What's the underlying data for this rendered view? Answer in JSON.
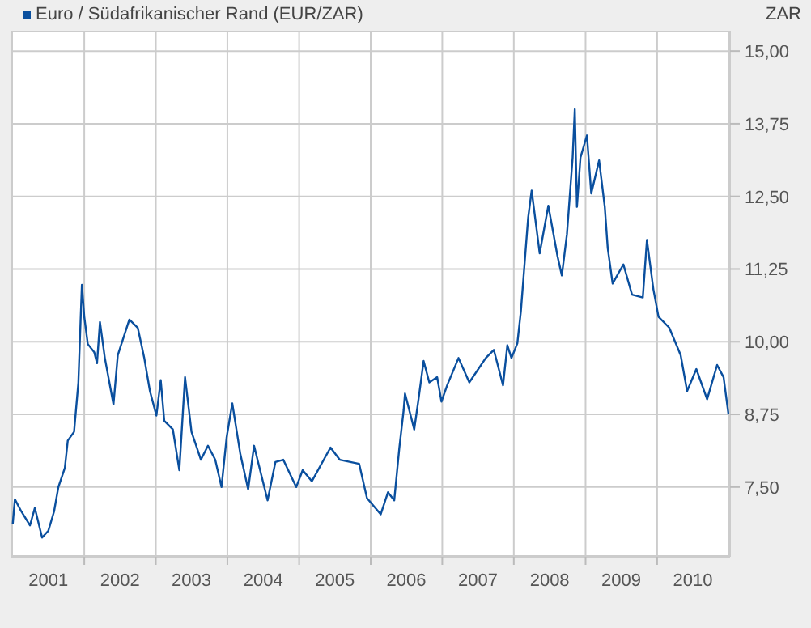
{
  "chart_data": {
    "type": "line",
    "ylabel": "ZAR",
    "legend": "top left",
    "grid": true,
    "line_style": "solid",
    "marker": "none",
    "xlim": [
      "2000-12-25",
      "2011-01-08"
    ],
    "xticks": [
      {
        "value": "2001-07-02",
        "label": "2001"
      },
      {
        "value": "2002-01-01",
        "label": null
      },
      {
        "value": "2002-07-02",
        "label": "2002"
      },
      {
        "value": "2003-01-01",
        "label": null
      },
      {
        "value": "2003-07-02",
        "label": "2003"
      },
      {
        "value": "2004-01-01",
        "label": null
      },
      {
        "value": "2004-07-02",
        "label": "2004"
      },
      {
        "value": "2005-01-01",
        "label": null
      },
      {
        "value": "2005-07-02",
        "label": "2005"
      },
      {
        "value": "2006-01-01",
        "label": null
      },
      {
        "value": "2006-07-02",
        "label": "2006"
      },
      {
        "value": "2007-01-01",
        "label": null
      },
      {
        "value": "2007-07-02",
        "label": "2007"
      },
      {
        "value": "2008-01-01",
        "label": null
      },
      {
        "value": "2008-07-02",
        "label": "2008"
      },
      {
        "value": "2009-01-01",
        "label": null
      },
      {
        "value": "2009-07-02",
        "label": "2009"
      },
      {
        "value": "2010-01-01",
        "label": null
      },
      {
        "value": "2010-07-02",
        "label": "2010"
      }
    ],
    "ylim": [
      6.3,
      15.35
    ],
    "yticks": [
      {
        "value": 7.5,
        "label": "7,50"
      },
      {
        "value": 8.75,
        "label": "8,75"
      },
      {
        "value": 10,
        "label": "10,00"
      },
      {
        "value": 11.25,
        "label": "11,25"
      },
      {
        "value": 12.5,
        "label": "12,50"
      },
      {
        "value": 13.75,
        "label": "13,75"
      },
      {
        "value": 15,
        "label": "15,00"
      }
    ],
    "x": [
      "2001-01-01",
      "2001-01-12",
      "2001-02-14",
      "2001-03-30",
      "2001-04-24",
      "2001-05-31",
      "2001-07-02",
      "2001-07-31",
      "2001-08-22",
      "2001-09-24",
      "2001-10-09",
      "2001-11-10",
      "2001-12-02",
      "2001-12-13",
      "2001-12-20",
      "2002-01-01",
      "2002-01-19",
      "2002-02-21",
      "2002-03-07",
      "2002-03-22",
      "2002-04-16",
      "2002-05-30",
      "2002-06-21",
      "2002-08-19",
      "2002-10-01",
      "2002-11-03",
      "2002-12-02",
      "2003-01-04",
      "2003-01-26",
      "2003-02-13",
      "2003-03-29",
      "2003-05-01",
      "2003-05-30",
      "2003-07-02",
      "2003-08-19",
      "2003-09-24",
      "2003-10-31",
      "2003-12-02",
      "2003-12-28",
      "2004-01-26",
      "2004-03-07",
      "2004-04-16",
      "2004-05-16",
      "2004-07-24",
      "2004-09-02",
      "2004-10-12",
      "2004-12-17",
      "2005-01-19",
      "2005-03-07",
      "2005-06-10",
      "2005-07-27",
      "2005-11-03",
      "2005-12-13",
      "2006-02-21",
      "2006-03-30",
      "2006-05-01",
      "2006-05-27",
      "2006-06-18",
      "2006-06-25",
      "2006-08-11",
      "2006-09-02",
      "2006-09-28",
      "2006-10-27",
      "2006-12-06",
      "2006-12-28",
      "2007-01-26",
      "2007-03-25",
      "2007-05-19",
      "2007-08-11",
      "2007-09-21",
      "2007-11-07",
      "2007-11-29",
      "2007-12-20",
      "2008-01-19",
      "2008-02-06",
      "2008-03-14",
      "2008-04-01",
      "2008-05-12",
      "2008-06-25",
      "2008-08-11",
      "2008-09-02",
      "2008-09-28",
      "2008-10-27",
      "2008-11-07",
      "2008-11-18",
      "2008-12-06",
      "2009-01-08",
      "2009-01-30",
      "2009-03-11",
      "2009-04-09",
      "2009-04-24",
      "2009-05-19",
      "2009-07-13",
      "2009-08-26",
      "2009-10-20",
      "2009-11-10",
      "2009-12-13",
      "2010-01-08",
      "2010-03-04",
      "2010-05-01",
      "2010-06-03",
      "2010-07-20",
      "2010-09-13",
      "2010-11-03",
      "2010-12-06",
      "2010-12-31"
    ],
    "series": [
      {
        "name": "Euro / Südafrikanischer Rand (EUR/ZAR)",
        "color": "#0a4f9e",
        "values": [
          6.86,
          7.29,
          7.08,
          6.84,
          7.14,
          6.63,
          6.75,
          7.08,
          7.5,
          7.83,
          8.3,
          8.45,
          9.3,
          10.34,
          10.98,
          10.43,
          9.96,
          9.82,
          9.63,
          10.34,
          9.72,
          8.92,
          9.77,
          10.38,
          10.24,
          9.72,
          9.15,
          8.73,
          9.34,
          8.64,
          8.49,
          7.79,
          9.39,
          8.45,
          7.97,
          8.21,
          7.97,
          7.5,
          8.35,
          8.94,
          8.07,
          7.46,
          8.21,
          7.27,
          7.93,
          7.97,
          7.5,
          7.79,
          7.6,
          8.18,
          7.97,
          7.9,
          7.31,
          7.03,
          7.41,
          7.27,
          8.17,
          8.82,
          9.11,
          8.49,
          9.01,
          9.67,
          9.3,
          9.39,
          8.97,
          9.25,
          9.72,
          9.3,
          9.72,
          9.86,
          9.25,
          9.94,
          9.72,
          9.97,
          10.52,
          12.13,
          12.6,
          11.52,
          12.34,
          11.47,
          11.14,
          11.85,
          13.17,
          14.0,
          12.32,
          13.17,
          13.55,
          12.55,
          13.12,
          12.32,
          11.61,
          11.0,
          11.33,
          10.81,
          10.76,
          11.75,
          10.9,
          10.43,
          10.24,
          9.77,
          9.15,
          9.53,
          9.01,
          9.6,
          9.39,
          8.75
        ]
      }
    ]
  }
}
